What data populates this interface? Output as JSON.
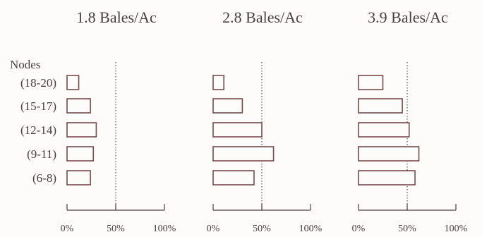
{
  "chart_data": {
    "type": "bar",
    "orientation": "horizontal",
    "row_header": "Nodes",
    "categories": [
      "(18-20)",
      "(15-17)",
      "(12-14)",
      "(9-11)",
      "(6-8)"
    ],
    "x_ticks": [
      "0%",
      "50%",
      "100%"
    ],
    "xlim": [
      0,
      100
    ],
    "reference_line": 50,
    "panels": [
      {
        "title": "1.8 Bales/Ac",
        "values": [
          12,
          24,
          30,
          27,
          24
        ]
      },
      {
        "title": "2.8 Bales/Ac",
        "values": [
          11,
          30,
          50,
          62,
          42
        ]
      },
      {
        "title": "3.9 Bales/Ac",
        "values": [
          25,
          45,
          52,
          62,
          58
        ]
      }
    ]
  }
}
